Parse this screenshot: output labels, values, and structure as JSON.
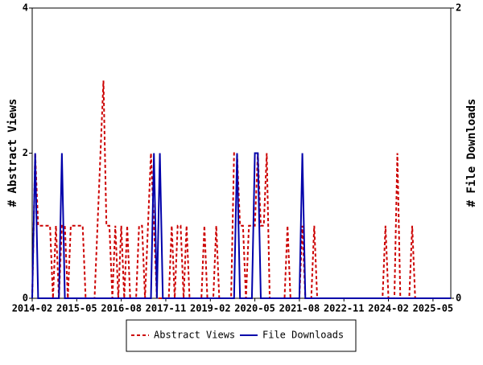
{
  "chart_data": {
    "type": "line",
    "x": [
      "2014-02",
      "2014-03",
      "2014-04",
      "2014-05",
      "2014-06",
      "2014-07",
      "2014-08",
      "2014-09",
      "2014-10",
      "2014-11",
      "2014-12",
      "2015-01",
      "2015-02",
      "2015-03",
      "2015-04",
      "2015-05",
      "2015-06",
      "2015-07",
      "2015-08",
      "2015-09",
      "2015-10",
      "2015-11",
      "2015-12",
      "2016-01",
      "2016-02",
      "2016-03",
      "2016-04",
      "2016-05",
      "2016-06",
      "2016-07",
      "2016-08",
      "2016-09",
      "2016-10",
      "2016-11",
      "2016-12",
      "2017-01",
      "2017-02",
      "2017-03",
      "2017-04",
      "2017-05",
      "2017-06",
      "2017-07",
      "2017-08",
      "2017-09",
      "2017-10",
      "2017-11",
      "2017-12",
      "2018-01",
      "2018-02",
      "2018-03",
      "2018-04",
      "2018-05",
      "2018-06",
      "2018-07",
      "2018-08",
      "2018-09",
      "2018-10",
      "2018-11",
      "2018-12",
      "2019-01",
      "2019-02",
      "2019-03",
      "2019-04",
      "2019-05",
      "2019-06",
      "2019-07",
      "2019-08",
      "2019-09",
      "2019-10",
      "2019-11",
      "2019-12",
      "2020-01",
      "2020-02",
      "2020-03",
      "2020-04",
      "2020-05",
      "2020-06",
      "2020-07",
      "2020-08",
      "2020-09",
      "2020-10",
      "2020-11",
      "2020-12",
      "2021-01",
      "2021-02",
      "2021-03",
      "2021-04",
      "2021-05",
      "2021-06",
      "2021-07",
      "2021-08",
      "2021-09",
      "2021-10",
      "2021-11",
      "2021-12",
      "2022-01",
      "2022-02",
      "2022-03",
      "2022-04",
      "2022-05",
      "2022-06",
      "2022-07",
      "2022-08",
      "2022-09",
      "2022-10",
      "2022-11",
      "2022-12",
      "2023-01",
      "2023-02",
      "2023-03",
      "2023-04",
      "2023-05",
      "2023-06",
      "2023-07",
      "2023-08",
      "2023-09",
      "2023-10",
      "2023-11",
      "2023-12",
      "2024-01",
      "2024-02",
      "2024-03",
      "2024-04",
      "2024-05",
      "2024-06",
      "2024-07",
      "2024-08",
      "2024-09",
      "2024-10",
      "2024-11",
      "2024-12",
      "2025-01",
      "2025-02",
      "2025-03",
      "2025-04",
      "2025-05",
      "2025-06",
      "2025-07",
      "2025-08",
      "2025-09",
      "2025-10",
      "2025-11"
    ],
    "series": [
      {
        "name": "Abstract Views",
        "color": "#cc0000",
        "dashed": true,
        "values": [
          0,
          2,
          1,
          1,
          1,
          1,
          1,
          0,
          1,
          0,
          1,
          1,
          0,
          1,
          1,
          1,
          1,
          1,
          0,
          0,
          0,
          0,
          1,
          2,
          3,
          1,
          1,
          0,
          1,
          0,
          1,
          0,
          1,
          0,
          0,
          0,
          1,
          1,
          0,
          1,
          2,
          1,
          0,
          0,
          0,
          0,
          0,
          1,
          0,
          1,
          1,
          0,
          1,
          0,
          0,
          0,
          0,
          0,
          1,
          0,
          0,
          0,
          1,
          0,
          0,
          0,
          0,
          0,
          2,
          2,
          1,
          1,
          0,
          1,
          1,
          1,
          2,
          1,
          1,
          2,
          0,
          0,
          0,
          0,
          0,
          0,
          1,
          0,
          0,
          0,
          0,
          1,
          0,
          0,
          0,
          1,
          0,
          0,
          0,
          0,
          0,
          0,
          0,
          0,
          0,
          0,
          0,
          0,
          0,
          0,
          0,
          0,
          0,
          0,
          0,
          0,
          0,
          0,
          0,
          1,
          0,
          0,
          0,
          2,
          0,
          0,
          0,
          0,
          1,
          0,
          0,
          0,
          0,
          0,
          0,
          0,
          0,
          0,
          0,
          0,
          0,
          0
        ]
      },
      {
        "name": "File Downloads",
        "color": "#0000aa",
        "axis": "y2",
        "values": [
          0,
          1,
          0,
          0,
          0,
          0,
          0,
          0,
          0,
          0,
          1,
          0,
          0,
          0,
          0,
          0,
          0,
          0,
          0,
          0,
          0,
          0,
          0,
          0,
          0,
          0,
          0,
          0,
          0,
          0,
          0,
          0,
          0,
          0,
          0,
          0,
          0,
          0,
          0,
          0,
          0,
          1,
          0,
          1,
          0,
          0,
          0,
          0,
          0,
          0,
          0,
          0,
          0,
          0,
          0,
          0,
          0,
          0,
          0,
          0,
          0,
          0,
          0,
          0,
          0,
          0,
          0,
          0,
          0,
          1,
          0,
          0,
          0,
          0,
          0,
          1,
          1,
          0,
          0,
          0,
          0,
          0,
          0,
          0,
          0,
          0,
          0,
          0,
          0,
          0,
          0,
          1,
          0,
          0,
          0,
          0,
          0,
          0,
          0,
          0,
          0,
          0,
          0,
          0,
          0,
          0,
          0,
          0,
          0,
          0,
          0,
          0,
          0,
          0,
          0,
          0,
          0,
          0,
          0,
          0,
          0,
          0,
          0,
          0,
          0,
          0,
          0,
          0,
          0,
          0,
          0,
          0,
          0,
          0,
          0,
          0,
          0,
          0,
          0,
          0,
          0,
          0
        ]
      }
    ],
    "xticks": [
      "2014-02",
      "2015-05",
      "2016-08",
      "2017-11",
      "2019-02",
      "2020-05",
      "2021-08",
      "2022-11",
      "2024-02",
      "2025-05"
    ],
    "ylabel": "# Abstract Views",
    "ylim": [
      0,
      4
    ],
    "yticks": [
      0,
      2,
      4
    ],
    "y2label": "# File Downloads",
    "y2lim": [
      0,
      2
    ],
    "y2ticks": [
      0,
      2
    ],
    "legend": "bottom"
  }
}
